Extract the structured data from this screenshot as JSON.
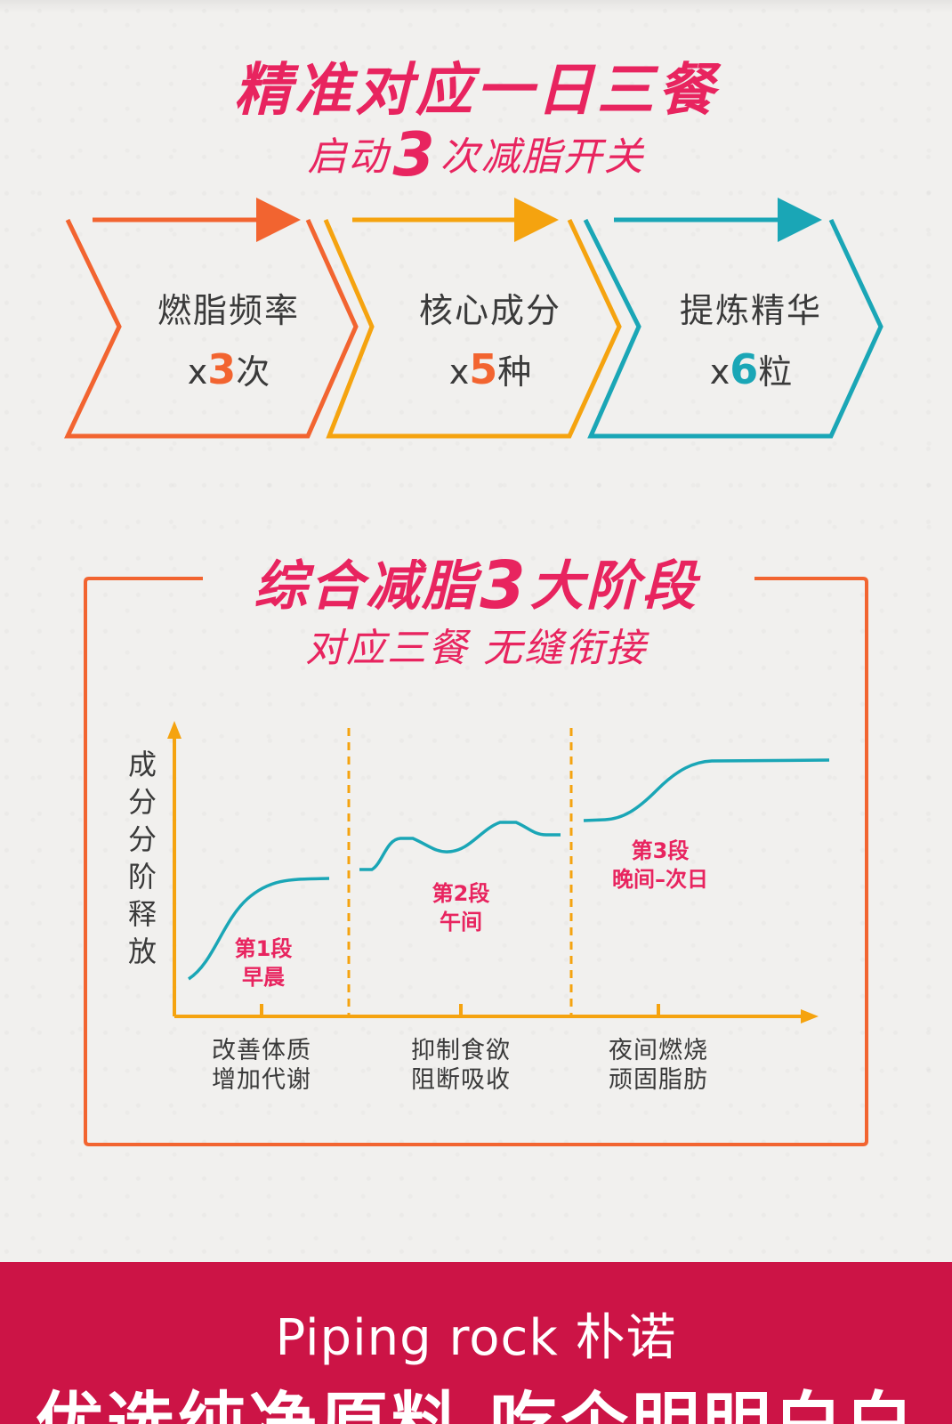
{
  "colors": {
    "accent_pink": "#e8245f",
    "orange_red": "#f26430",
    "amber": "#f5a30f",
    "teal": "#1aa6b6",
    "footer_bg": "#cc1446",
    "text_dark": "#3a3a3a"
  },
  "header": {
    "title": "精准对应一日三餐",
    "subtitle_prefix": "启动",
    "subtitle_number": "3",
    "subtitle_suffix": "次减脂开关"
  },
  "steps": [
    {
      "title": "燃脂频率",
      "prefix": "x",
      "number": "3",
      "unit": "次",
      "color": "#f26430"
    },
    {
      "title": "核心成分",
      "prefix": "x",
      "number": "5",
      "unit": "种",
      "color": "#f5a30f"
    },
    {
      "title": "提炼精华",
      "prefix": "x",
      "number": "6",
      "unit": "粒",
      "color": "#1aa6b6"
    }
  ],
  "section2": {
    "title_prefix": "综合减脂",
    "title_number": "3",
    "title_suffix": "大阶段",
    "subtitle": "对应三餐 无缝衔接"
  },
  "chart_data": {
    "type": "line",
    "title": "",
    "ylabel": "成分分阶释放",
    "stages": [
      {
        "name": "第1段",
        "time": "早晨",
        "effect_line1": "改善体质",
        "effect_line2": "增加代谢"
      },
      {
        "name": "第2段",
        "time": "午间",
        "effect_line1": "抑制食欲",
        "effect_line2": "阻断吸收"
      },
      {
        "name": "第3段",
        "time": "晚间–次日",
        "effect_line1": "夜间燃烧",
        "effect_line2": "顽固脂肪"
      }
    ],
    "grid": false
  },
  "footer": {
    "brand": "Piping rock 朴诺",
    "slogan": "优选纯净原料 吃个明明白白"
  }
}
